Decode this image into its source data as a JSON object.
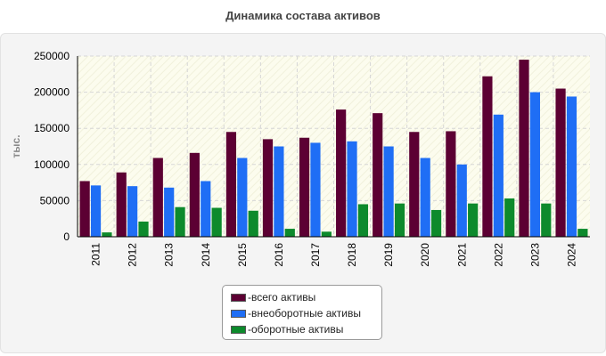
{
  "title": "Динамика состава активов",
  "colors": {
    "series": [
      "#5c0033",
      "#1f6ef5",
      "#0d8a2c"
    ],
    "plot_bg": "#fcfcee",
    "grid": "#d6d6d6"
  },
  "chart_data": {
    "type": "bar",
    "categories": [
      "2011",
      "2012",
      "2013",
      "2014",
      "2015",
      "2016",
      "2017",
      "2018",
      "2019",
      "2020",
      "2021",
      "2022",
      "2023",
      "2024"
    ],
    "series": [
      {
        "name": "всего активы",
        "values": [
          77000,
          89000,
          109000,
          116000,
          145000,
          135000,
          137000,
          176000,
          171000,
          145000,
          146000,
          222000,
          245000,
          205000
        ]
      },
      {
        "name": "внеоборотные активы",
        "values": [
          71000,
          70000,
          68000,
          77000,
          109000,
          125000,
          130000,
          132000,
          125000,
          109000,
          100000,
          169000,
          200000,
          194000
        ]
      },
      {
        "name": "оборотные активы",
        "values": [
          6000,
          21000,
          41000,
          40000,
          36000,
          11000,
          7000,
          45000,
          46000,
          37000,
          46000,
          53000,
          46000,
          11000
        ]
      }
    ],
    "ylabel": "тыс.",
    "xlabel": "",
    "ylim": [
      0,
      250000
    ],
    "yticks": [
      0,
      50000,
      100000,
      150000,
      200000,
      250000
    ],
    "grid": true,
    "legend_position": "bottom-center",
    "legend_prefix": "- "
  }
}
